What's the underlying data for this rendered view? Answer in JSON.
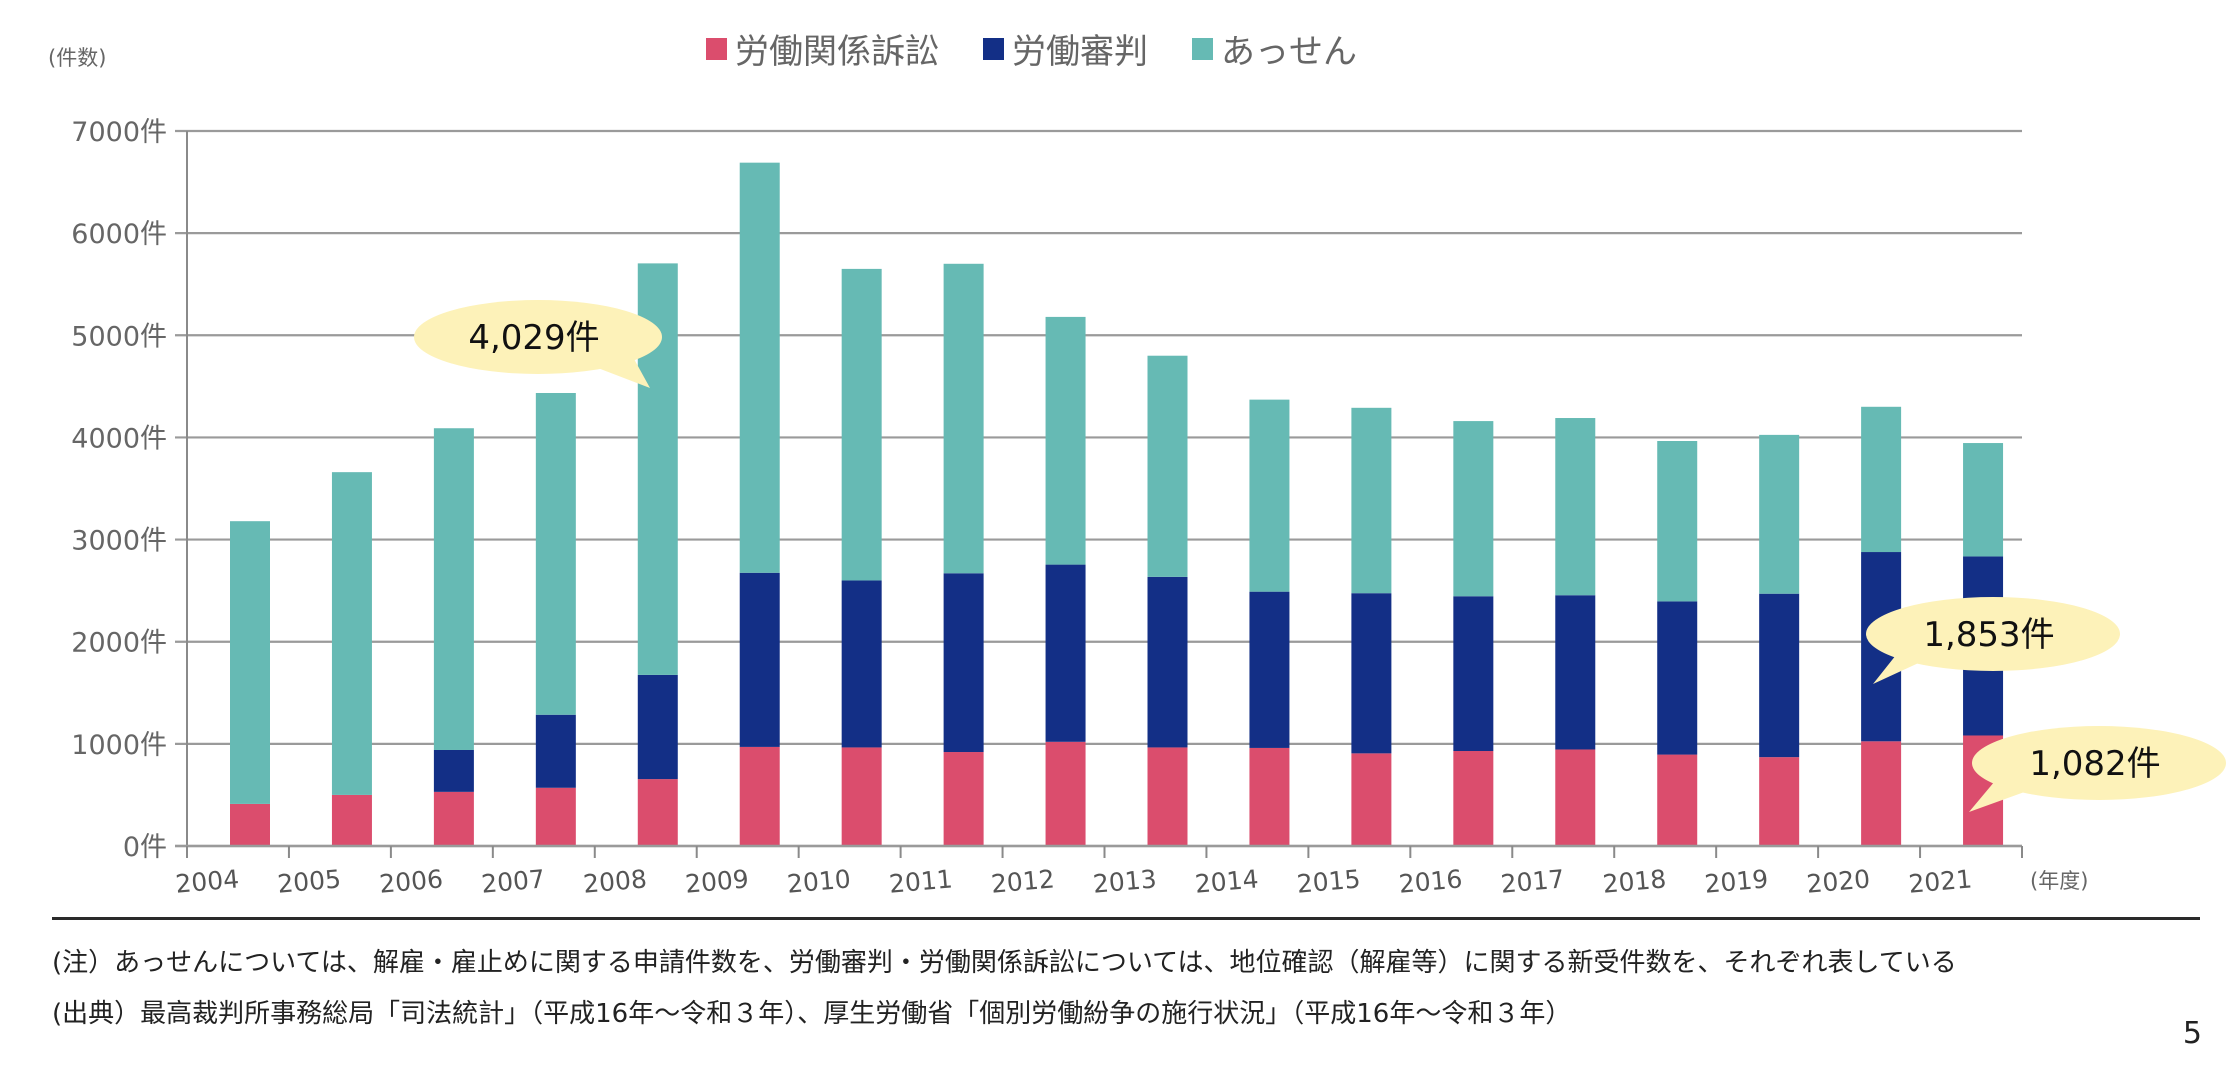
{
  "chart_data": {
    "type": "bar",
    "stacked": true,
    "title": "",
    "xlabel": "(年度)",
    "ylabel": "(件数)",
    "ylim": [
      0,
      7000
    ],
    "yticks": [
      0,
      1000,
      2000,
      3000,
      4000,
      5000,
      6000,
      7000
    ],
    "ytick_suffix": "件",
    "grid": true,
    "legend_position": "top-center",
    "categories": [
      "2004",
      "2005",
      "2006",
      "2007",
      "2008",
      "2009",
      "2010",
      "2011",
      "2012",
      "2013",
      "2014",
      "2015",
      "2016",
      "2017",
      "2018",
      "2019",
      "2020",
      "2021"
    ],
    "series": [
      {
        "name": "労働関係訴訟",
        "color": "#DB4D6D",
        "values": [
          412,
          500,
          530,
          570,
          655,
          970,
          965,
          920,
          1020,
          965,
          960,
          907,
          930,
          945,
          895,
          870,
          1025,
          1082
        ]
      },
      {
        "name": "労働審判",
        "color": "#132F86",
        "values": [
          0,
          0,
          410,
          715,
          1020,
          1705,
          1635,
          1750,
          1735,
          1670,
          1530,
          1568,
          1515,
          1510,
          1500,
          1600,
          1853,
          1753
        ]
      },
      {
        "name": "あっせん",
        "color": "#66BAB4",
        "values": [
          2768,
          3160,
          3150,
          3150,
          4029,
          4015,
          3050,
          3030,
          2425,
          2165,
          1880,
          1815,
          1715,
          1735,
          1570,
          1555,
          1422,
          1110
        ]
      }
    ],
    "annotations": [
      {
        "text": "4,029件",
        "category": "2008",
        "series": "あっせん",
        "value": 4029
      },
      {
        "text": "1,853件",
        "category": "2020",
        "series": "労働審判",
        "value": 1853
      },
      {
        "text": "1,082件",
        "category": "2021",
        "series": "労働関係訴訟",
        "value": 1082
      }
    ],
    "annotation_fill": "#FDF2B9"
  },
  "legend": [
    {
      "label": "労働関係訴訟",
      "color": "#DB4D6D"
    },
    {
      "label": "労働審判",
      "color": "#132F86"
    },
    {
      "label": "あっせん",
      "color": "#66BAB4"
    }
  ],
  "y_unit_label": "(件数)",
  "x_unit_label": "(年度)",
  "notes": {
    "note": "(注）あっせんについては、解雇・雇止めに関する申請件数を、労働審判・労働関係訴訟については、地位確認（解雇等）に関する新受件数を、それぞれ表している",
    "source": "(出典）最高裁判所事務総局「司法統計」（平成16年～令和３年）、厚生労働省「個別労働紛争の施行状況」（平成16年～令和３年）"
  },
  "page_number": "5"
}
